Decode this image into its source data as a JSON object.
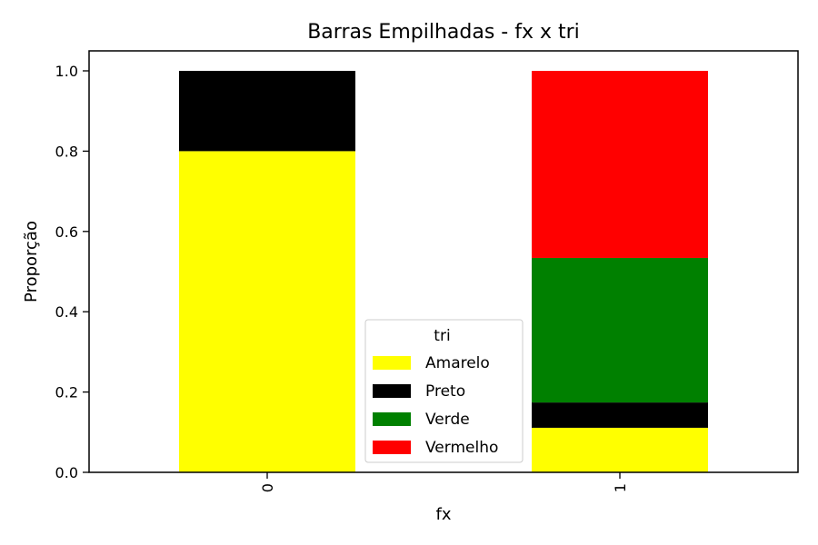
{
  "chart_data": {
    "type": "bar",
    "stacked": true,
    "title": "Barras Empilhadas - fx x tri",
    "xlabel": "fx",
    "ylabel": "Proporção",
    "categories": [
      "0",
      "1"
    ],
    "ylim": [
      0,
      1.0
    ],
    "yticks": [
      "0.0",
      "0.2",
      "0.4",
      "0.6",
      "0.8",
      "1.0"
    ],
    "grid": false,
    "legend": {
      "title": "tri",
      "position": "lower-center"
    },
    "series": [
      {
        "name": "Amarelo",
        "color": "#ffff00",
        "values": [
          0.8,
          0.111
        ]
      },
      {
        "name": "Preto",
        "color": "#000000",
        "values": [
          0.2,
          0.063
        ]
      },
      {
        "name": "Verde",
        "color": "#008000",
        "values": [
          0.0,
          0.36
        ]
      },
      {
        "name": "Vermelho",
        "color": "#ff0000",
        "values": [
          0.0,
          0.466
        ]
      }
    ]
  }
}
